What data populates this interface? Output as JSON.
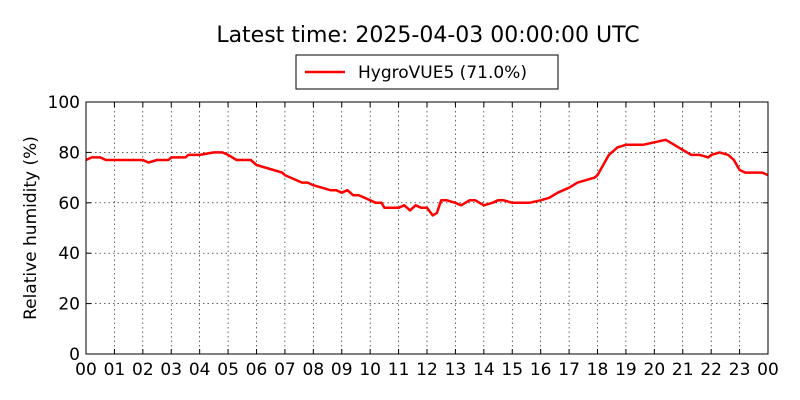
{
  "chart_data": {
    "type": "line",
    "title": "Latest time: 2025-04-03 00:00:00 UTC",
    "xlabel": "",
    "ylabel": "Relative humidity (%)",
    "xlim": [
      0,
      24
    ],
    "ylim": [
      0,
      100
    ],
    "grid": true,
    "legend_position": "top-center",
    "x_ticks": [
      0,
      1,
      2,
      3,
      4,
      5,
      6,
      7,
      8,
      9,
      10,
      11,
      12,
      13,
      14,
      15,
      16,
      17,
      18,
      19,
      20,
      21,
      22,
      23,
      24
    ],
    "x_tick_labels": [
      "00",
      "01",
      "02",
      "03",
      "04",
      "05",
      "06",
      "07",
      "08",
      "09",
      "10",
      "11",
      "12",
      "13",
      "14",
      "15",
      "16",
      "17",
      "18",
      "19",
      "20",
      "21",
      "22",
      "23",
      "00"
    ],
    "y_ticks": [
      0,
      20,
      40,
      60,
      80,
      100
    ],
    "y_tick_labels": [
      "0",
      "20",
      "40",
      "60",
      "80",
      "100"
    ],
    "series": [
      {
        "name": "HygroVUE5 (71.0%)",
        "color": "#ff0000",
        "x": [
          0.0,
          0.2,
          0.5,
          0.7,
          1.0,
          1.5,
          2.0,
          2.2,
          2.5,
          2.9,
          3.0,
          3.5,
          3.6,
          4.0,
          4.5,
          4.8,
          5.0,
          5.3,
          5.8,
          6.0,
          6.3,
          6.6,
          6.9,
          7.0,
          7.2,
          7.4,
          7.6,
          7.8,
          8.0,
          8.3,
          8.6,
          8.8,
          9.0,
          9.2,
          9.4,
          9.6,
          9.8,
          10.0,
          10.2,
          10.4,
          10.5,
          10.6,
          10.8,
          11.0,
          11.2,
          11.4,
          11.6,
          11.8,
          12.0,
          12.2,
          12.35,
          12.5,
          12.7,
          13.0,
          13.2,
          13.5,
          13.7,
          14.0,
          14.3,
          14.5,
          14.7,
          15.0,
          15.3,
          15.6,
          16.0,
          16.3,
          16.6,
          17.0,
          17.3,
          17.6,
          17.9,
          18.0,
          18.2,
          18.4,
          18.7,
          19.0,
          19.3,
          19.6,
          20.0,
          20.4,
          20.7,
          21.0,
          21.3,
          21.6,
          21.9,
          22.0,
          22.3,
          22.6,
          22.8,
          23.0,
          23.2,
          23.5,
          23.8,
          24.0
        ],
        "y": [
          77,
          78,
          78,
          77,
          77,
          77,
          77,
          76,
          77,
          77,
          78,
          78,
          79,
          79,
          80,
          80,
          79,
          77,
          77,
          75,
          74,
          73,
          72,
          71,
          70,
          69,
          68,
          68,
          67,
          66,
          65,
          65,
          64,
          65,
          63,
          63,
          62,
          61,
          60,
          60,
          58,
          58,
          58,
          58,
          59,
          57,
          59,
          58,
          58,
          55,
          56,
          61,
          61,
          60,
          59,
          61,
          61,
          59,
          60,
          61,
          61,
          60,
          60,
          60,
          61,
          62,
          64,
          66,
          68,
          69,
          70,
          71,
          75,
          79,
          82,
          83,
          83,
          83,
          84,
          85,
          83,
          81,
          79,
          79,
          78,
          79,
          80,
          79,
          77,
          73,
          72,
          72,
          72,
          71
        ]
      }
    ]
  }
}
